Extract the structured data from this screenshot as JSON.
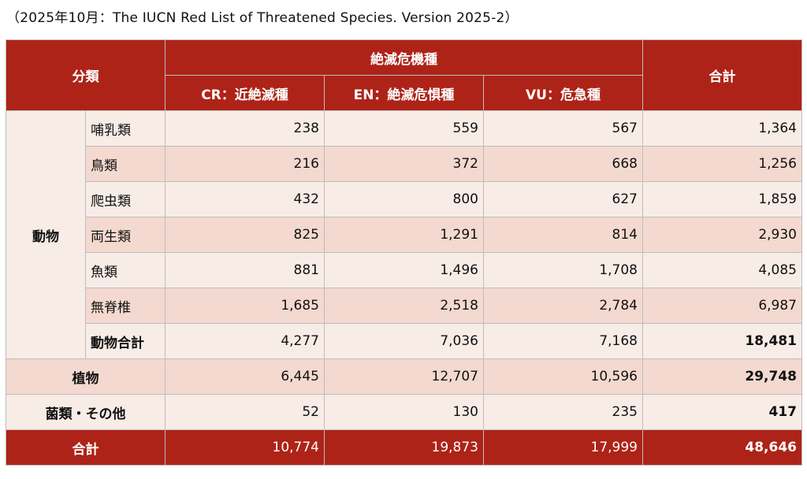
{
  "caption": "（2025年10月：The IUCN Red List of Threatened Species. Version 2025-2）",
  "header": {
    "classification": "分類",
    "threatened": "絶滅危機種",
    "cr": "CR：近絶滅種",
    "en": "EN：絶滅危惧種",
    "vu": "VU：危急種",
    "total": "合計"
  },
  "animals": {
    "label": "動物",
    "rows": [
      {
        "name": "哺乳類",
        "cr": "238",
        "en": "559",
        "vu": "567",
        "total": "1,364"
      },
      {
        "name": "鳥類",
        "cr": "216",
        "en": "372",
        "vu": "668",
        "total": "1,256"
      },
      {
        "name": "爬虫類",
        "cr": "432",
        "en": "800",
        "vu": "627",
        "total": "1,859"
      },
      {
        "name": "両生類",
        "cr": "825",
        "en": "1,291",
        "vu": "814",
        "total": "2,930"
      },
      {
        "name": "魚類",
        "cr": "881",
        "en": "1,496",
        "vu": "1,708",
        "total": "4,085"
      },
      {
        "name": "無脊椎",
        "cr": "1,685",
        "en": "2,518",
        "vu": "2,784",
        "total": "6,987"
      },
      {
        "name": "動物合計",
        "cr": "4,277",
        "en": "7,036",
        "vu": "7,168",
        "total": "18,481"
      }
    ]
  },
  "plants": {
    "name": "植物",
    "cr": "6,445",
    "en": "12,707",
    "vu": "10,596",
    "total": "29,748"
  },
  "fungi": {
    "name": "菌類・その他",
    "cr": "52",
    "en": "130",
    "vu": "235",
    "total": "417"
  },
  "grand_total": {
    "name": "合計",
    "cr": "10,774",
    "en": "19,873",
    "vu": "17,999",
    "total": "48,646"
  },
  "colors": {
    "header": "#ae2318",
    "row_light": "#f8ece7",
    "row_dark": "#f3d9cf"
  }
}
